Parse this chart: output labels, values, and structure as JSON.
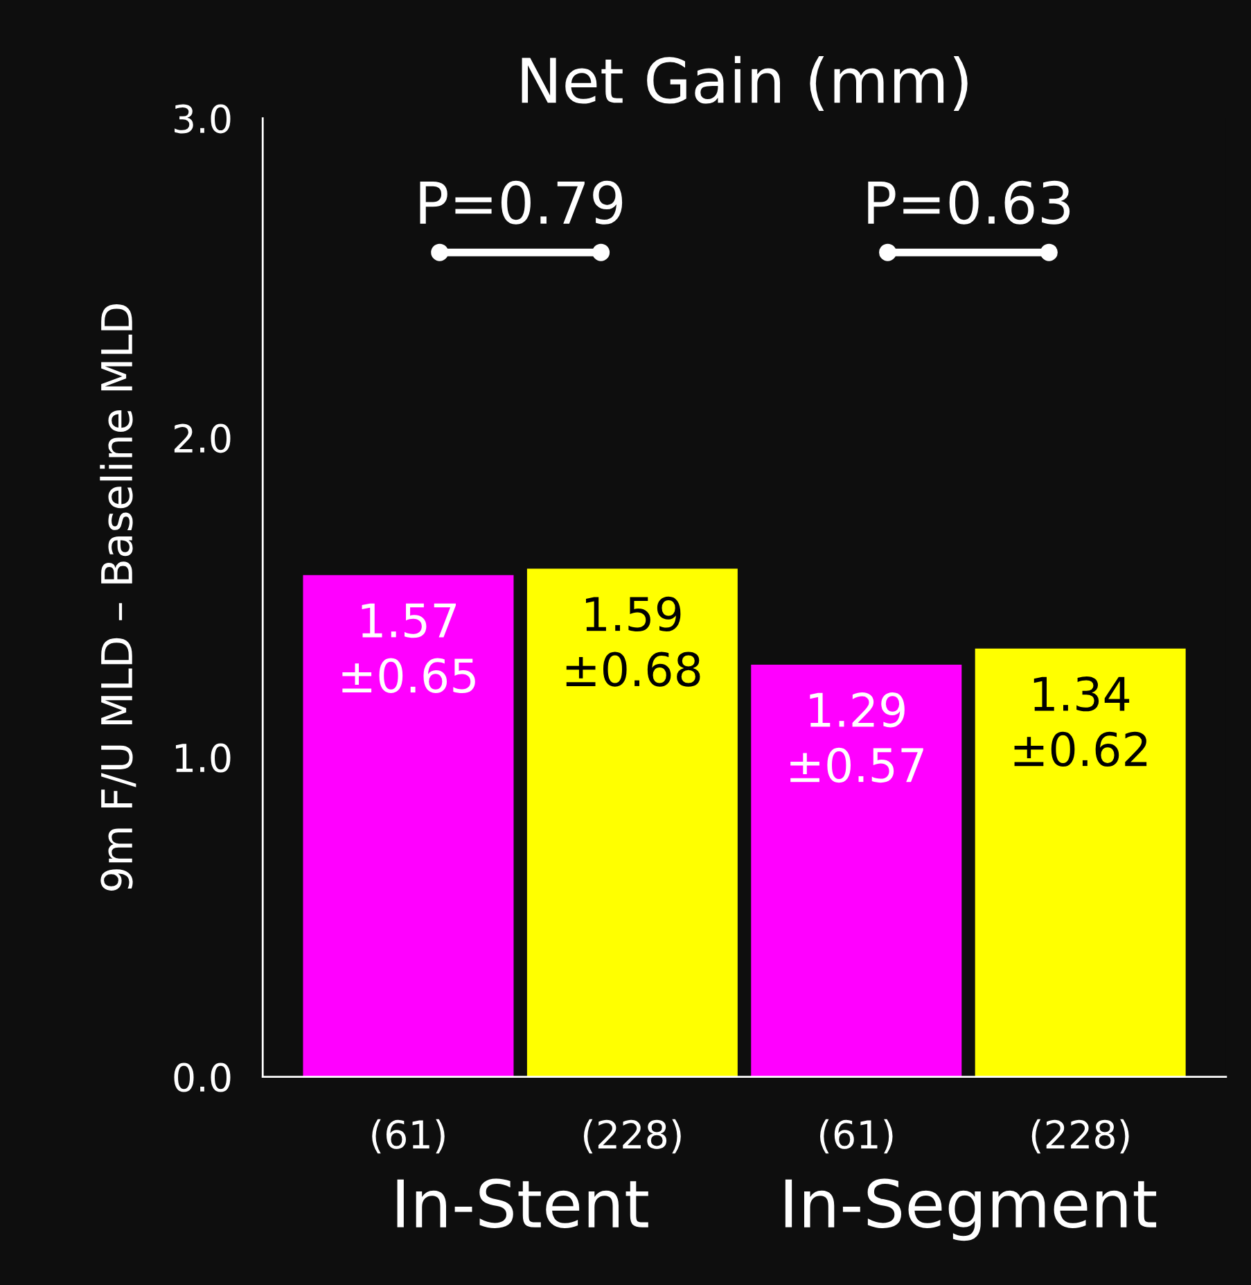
{
  "chart_data": {
    "type": "bar",
    "title": "Net Gain (mm)",
    "ylabel": "9m F/U MLD – Baseline MLD",
    "categories": [
      "(61)",
      "(228)",
      "(61)",
      "(228)"
    ],
    "values": [
      1.57,
      1.59,
      1.29,
      1.34
    ],
    "colors": [
      "#ff00ff",
      "#ffff00",
      "#ff00ff",
      "#ffff00"
    ],
    "value_labels": [
      "1.57\n±0.65",
      "1.59\n±0.68",
      "1.29\n±0.57",
      "1.34\n±0.62"
    ],
    "ylim": [
      0,
      3
    ],
    "yticks": [
      {
        "value": 0,
        "label": "0.0"
      },
      {
        "value": 1,
        "label": "1.0"
      },
      {
        "value": 2,
        "label": "2.0"
      },
      {
        "value": 3,
        "label": "3.0"
      }
    ],
    "annotations": [
      "In-Stent",
      "In-Segment",
      "P=0.79",
      "P=0.63"
    ],
    "grid": false,
    "legend": false
  }
}
